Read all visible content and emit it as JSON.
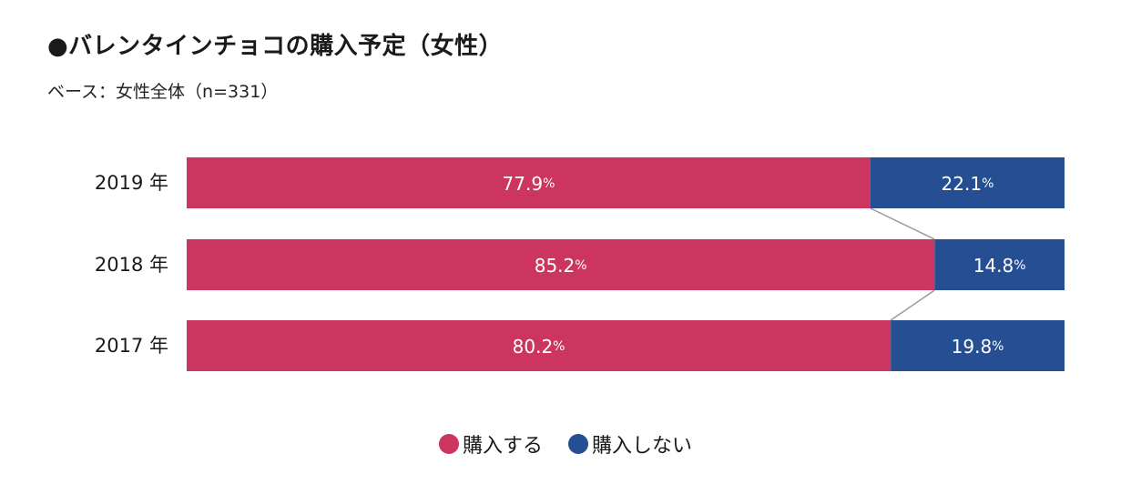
{
  "title": "●バレンタインチョコの購入予定（女性）",
  "subtitle": "ベース：女性全体（n=331）",
  "colors": {
    "buy": "#cc3560",
    "not_buy": "#254f92"
  },
  "chart_data": {
    "type": "bar",
    "orientation": "horizontal",
    "stacked": true,
    "normalized": "100%",
    "categories": [
      "2019 年",
      "2018 年",
      "2017 年"
    ],
    "series": [
      {
        "name": "購入する",
        "values": [
          77.9,
          85.2,
          80.2
        ],
        "color": "#cc3560"
      },
      {
        "name": "購入しない",
        "values": [
          22.1,
          14.8,
          19.8
        ],
        "color": "#254f92"
      }
    ],
    "value_suffix": "%",
    "xlim": [
      0,
      100
    ],
    "legend_position": "bottom-center",
    "grid": false,
    "connector_lines": true
  }
}
